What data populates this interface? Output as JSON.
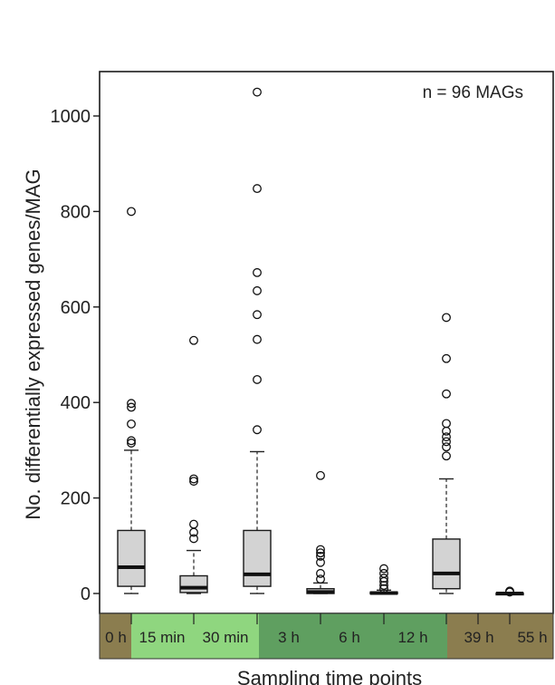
{
  "chart_data": {
    "type": "boxplot",
    "ylabel": "No. differentially expressed genes/MAG",
    "xlabel": "Sampling time points",
    "annotation": "n = 96 MAGs",
    "ylim": [
      0,
      1000
    ],
    "yticks": [
      0,
      200,
      400,
      600,
      800,
      1000
    ],
    "grid": false,
    "categories": [
      "0 h",
      "15 min",
      "30 min",
      "3 h",
      "6 h",
      "12 h",
      "39 h",
      "55 h"
    ],
    "time_bar": {
      "segments": [
        {
          "labels": [
            "0 h"
          ],
          "color": "#8b7d4f"
        },
        {
          "labels": [
            "15 min",
            "30 min"
          ],
          "color": "#8fd67f"
        },
        {
          "labels": [
            "3 h",
            "6 h",
            "12 h"
          ],
          "color": "#5f9f60"
        },
        {
          "labels": [
            "39 h",
            "55 h"
          ],
          "color": "#8b7d4f"
        }
      ]
    },
    "boxes": [
      {
        "category": "0 h",
        "q1": 15,
        "median": 55,
        "q3": 132,
        "whisker_low": 0,
        "whisker_high": 300,
        "outliers": [
          315,
          320,
          355,
          390,
          398,
          800
        ]
      },
      {
        "category": "15 min",
        "q1": 2,
        "median": 12,
        "q3": 37,
        "whisker_low": 0,
        "whisker_high": 90,
        "outliers": [
          115,
          128,
          145,
          235,
          240,
          530
        ]
      },
      {
        "category": "30 min",
        "q1": 15,
        "median": 40,
        "q3": 132,
        "whisker_low": 0,
        "whisker_high": 297,
        "outliers": [
          343,
          448,
          532,
          584,
          634,
          672,
          848,
          1050
        ]
      },
      {
        "category": "3 h",
        "q1": 0,
        "median": 3,
        "q3": 10,
        "whisker_low": 0,
        "whisker_high": 22,
        "outliers": [
          30,
          42,
          65,
          78,
          85,
          92,
          247
        ]
      },
      {
        "category": "6 h",
        "q1": 0,
        "median": 1,
        "q3": 3,
        "whisker_low": 0,
        "whisker_high": 7,
        "outliers": [
          10,
          17,
          25,
          32,
          42,
          52
        ]
      },
      {
        "category": "12 h",
        "q1": 10,
        "median": 42,
        "q3": 114,
        "whisker_low": 0,
        "whisker_high": 240,
        "outliers": [
          288,
          307,
          318,
          328,
          340,
          356,
          418,
          492,
          578
        ]
      },
      {
        "category": "55 h",
        "q1": 0,
        "median": 0,
        "q3": 1,
        "whisker_low": 0,
        "whisker_high": 1,
        "outliers": [
          3,
          5
        ]
      }
    ]
  }
}
